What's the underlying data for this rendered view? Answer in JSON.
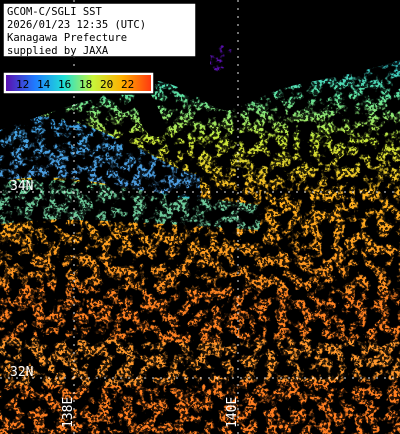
{
  "map": {
    "title_lines": [
      "GCOM-C/SGLI SST",
      "2026/01/23 12:35 (UTC)",
      "Kanagawa Prefecture",
      "supplied by JAXA"
    ],
    "legend": {
      "values": [
        "12",
        "14",
        "16",
        "18",
        "20",
        "22"
      ],
      "colors": [
        "#5a10b0",
        "#1f7cff",
        "#1fe0d6",
        "#c8f53a",
        "#ffb000",
        "#ff3a10"
      ]
    },
    "latitude_labels": [
      "34N",
      "32N"
    ],
    "longitude_labels": [
      "138E",
      "140E"
    ],
    "colors": {
      "land": "#000000",
      "cloud": "#000000",
      "grid": "#ffffff",
      "coast_cold": "#3da0ff",
      "mid_water": "#37d8c8",
      "warm_water": "#ff9a2a",
      "hot_water": "#ff5a14"
    }
  }
}
